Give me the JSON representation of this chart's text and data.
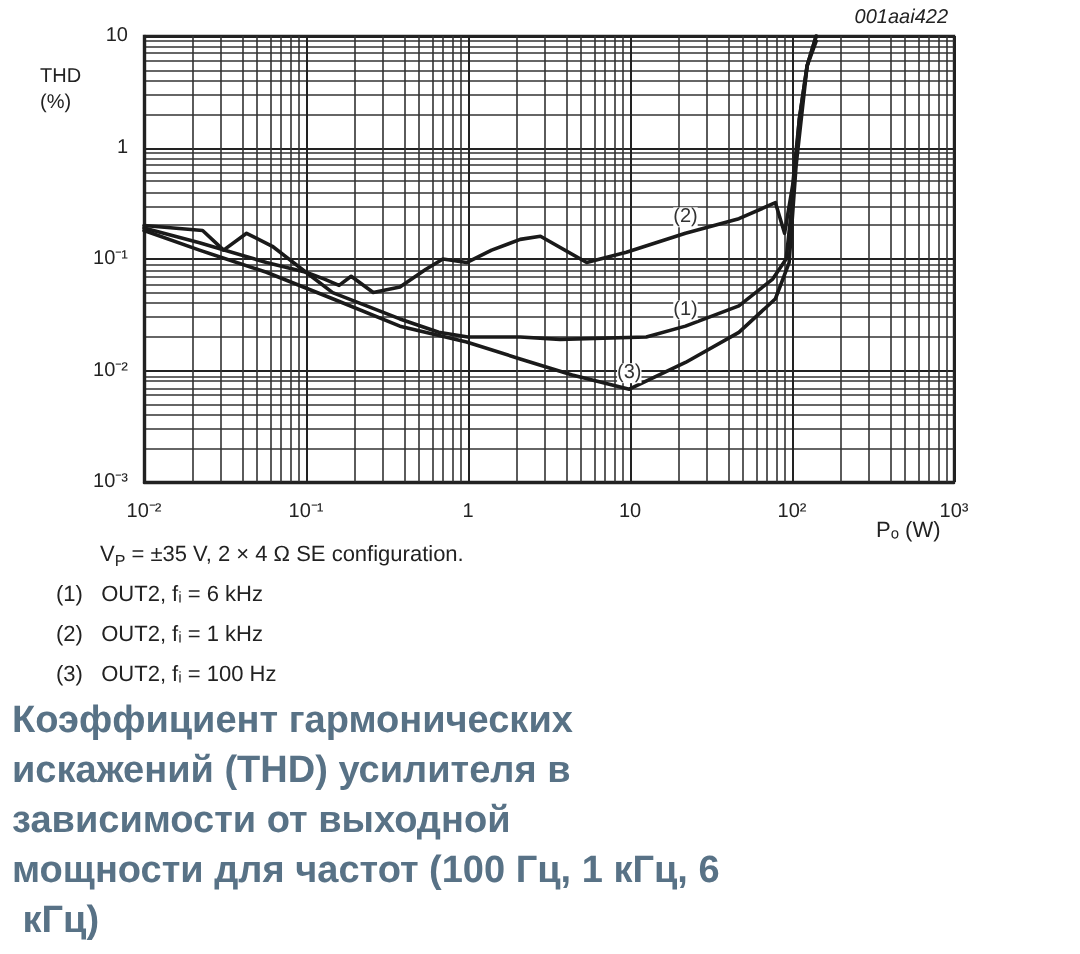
{
  "chart_data": {
    "type": "line",
    "title": "Коэффициент гармонических искажений (THD) усилителя в зависимости от выходной мощности для частот (100 Гц, 1 кГц, 6 кГц)",
    "xlabel": "Pₒ (W)",
    "ylabel": "THD (%)",
    "annotations": [
      "001aai422",
      "V$_{P}$ = ±35 V, 2 × 4 Ω SE configuration.",
      "(1)   OUT2, fᵢ = 6 kHz",
      "(2)   OUT2, fᵢ = 1 kHz",
      "(3)   OUT2, fᵢ = 100 Hz"
    ],
    "log": "xy",
    "grid": true,
    "legend": false,
    "marker": "none",
    "line_style": "solid",
    "xlim": [
      0.01,
      1000
    ],
    "ylim": [
      0.001,
      10
    ],
    "xticks": [
      {
        "value": 0.01,
        "label": "10⁻²"
      },
      {
        "value": 0.1,
        "label": "10⁻¹"
      },
      1,
      10,
      {
        "value": 100,
        "label": "10²"
      },
      {
        "value": 1000,
        "label": "10³"
      }
    ],
    "yticks": [
      {
        "value": 0.001,
        "label": "10⁻³"
      },
      {
        "value": 0.01,
        "label": "10⁻²"
      },
      {
        "value": 0.1,
        "label": "10⁻¹"
      },
      1,
      10
    ],
    "series": [
      {
        "name": "(1)",
        "color": "#1a1a1a",
        "x": [
          0.01,
          0.022,
          0.057,
          0.1,
          0.146,
          0.38,
          0.66,
          1,
          2.1,
          3.7,
          12.6,
          22,
          47,
          76,
          92,
          101,
          111,
          124,
          141
        ],
        "values": [
          0.19,
          0.14,
          0.093,
          0.076,
          0.05,
          0.029,
          0.022,
          0.02,
          0.02,
          0.019,
          0.02,
          0.025,
          0.038,
          0.066,
          0.1,
          0.35,
          1.8,
          5.4,
          10
        ]
      },
      {
        "name": "(2)",
        "color": "#1a1a1a",
        "x": [
          0.01,
          0.023,
          0.031,
          0.043,
          0.062,
          0.1,
          0.13,
          0.16,
          0.19,
          0.26,
          0.38,
          0.55,
          0.7,
          0.98,
          1.4,
          2.1,
          2.8,
          5.4,
          9.5,
          22,
          47,
          79,
          90,
          101,
          111,
          124,
          141
        ],
        "values": [
          0.2,
          0.18,
          0.12,
          0.17,
          0.13,
          0.076,
          0.066,
          0.058,
          0.07,
          0.05,
          0.056,
          0.081,
          0.1,
          0.093,
          0.12,
          0.15,
          0.16,
          0.093,
          0.115,
          0.17,
          0.23,
          0.32,
          0.17,
          0.46,
          1.8,
          5.4,
          10
        ]
      },
      {
        "name": "(3)",
        "color": "#1a1a1a",
        "x": [
          0.01,
          0.022,
          0.057,
          0.146,
          0.38,
          0.98,
          2.1,
          4.4,
          9.9,
          22,
          47,
          79,
          96,
          106,
          124,
          141
        ],
        "values": [
          0.18,
          0.12,
          0.076,
          0.044,
          0.025,
          0.018,
          0.0127,
          0.0091,
          0.0068,
          0.0118,
          0.022,
          0.044,
          0.093,
          0.69,
          5.4,
          9
        ]
      }
    ]
  }
}
